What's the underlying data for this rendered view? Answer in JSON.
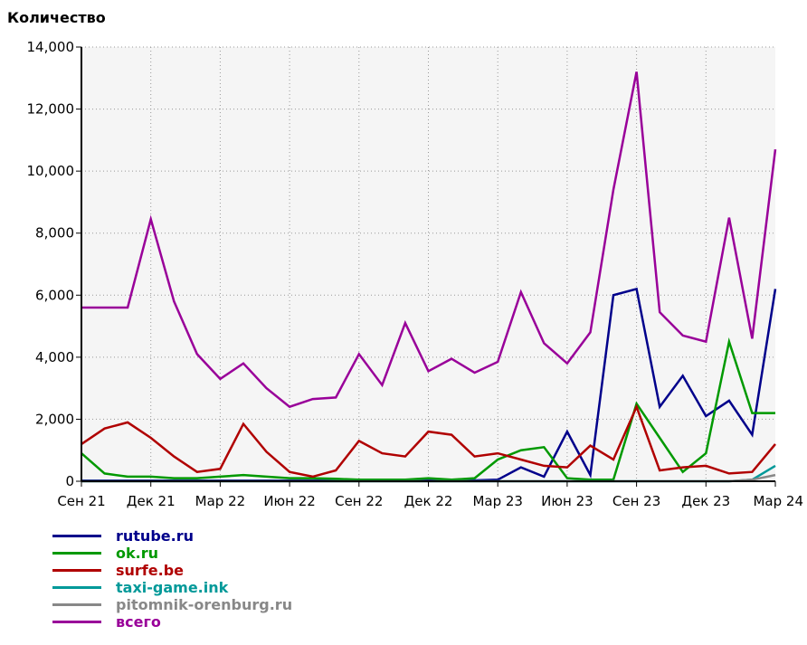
{
  "chart_data": {
    "type": "line",
    "ylabel": "Количество",
    "ylim": [
      0,
      14000
    ],
    "yticks": [
      "0",
      "2,000",
      "4,000",
      "6,000",
      "8,000",
      "10,000",
      "12,000",
      "14,000"
    ],
    "xticks": [
      "Сен 21",
      "Дек 21",
      "Мар 22",
      "Июн 22",
      "Сен 22",
      "Дек 22",
      "Мар 23",
      "Июн 23",
      "Сен 23",
      "Дек 23",
      "Мар 24"
    ],
    "x": [
      "2021-09",
      "2021-10",
      "2021-11",
      "2021-12",
      "2022-01",
      "2022-02",
      "2022-03",
      "2022-04",
      "2022-05",
      "2022-06",
      "2022-07",
      "2022-08",
      "2022-09",
      "2022-10",
      "2022-11",
      "2022-12",
      "2023-01",
      "2023-02",
      "2023-03",
      "2023-04",
      "2023-05",
      "2023-06",
      "2023-07",
      "2023-08",
      "2023-09",
      "2023-10",
      "2023-11",
      "2023-12",
      "2024-01",
      "2024-02",
      "2024-03"
    ],
    "grid": true,
    "legend_position": "bottom-left",
    "series": [
      {
        "name": "rutube.ru",
        "color": "#00008b",
        "values": [
          20,
          20,
          20,
          20,
          20,
          20,
          20,
          20,
          20,
          20,
          20,
          20,
          20,
          20,
          20,
          20,
          20,
          30,
          50,
          450,
          150,
          1600,
          200,
          6000,
          6200,
          2400,
          3400,
          2100,
          2600,
          1500,
          6200
        ]
      },
      {
        "name": "ok.ru",
        "color": "#009900",
        "values": [
          900,
          250,
          150,
          150,
          100,
          100,
          150,
          200,
          150,
          100,
          100,
          80,
          50,
          50,
          50,
          100,
          50,
          100,
          700,
          1000,
          1100,
          100,
          50,
          50,
          2500,
          1400,
          300,
          900,
          4500,
          2200,
          2200
        ]
      },
      {
        "name": "surfe.be",
        "color": "#b00000",
        "values": [
          1200,
          1700,
          1900,
          1400,
          800,
          300,
          400,
          1850,
          950,
          300,
          150,
          350,
          1300,
          900,
          800,
          1600,
          1500,
          800,
          900,
          700,
          500,
          450,
          1150,
          700,
          2400,
          350,
          450,
          500,
          250,
          300,
          1200
        ]
      },
      {
        "name": "taxi-game.ink",
        "color": "#009999",
        "values": [
          0,
          0,
          0,
          0,
          0,
          0,
          0,
          0,
          0,
          0,
          0,
          0,
          0,
          0,
          0,
          0,
          0,
          0,
          0,
          0,
          0,
          0,
          0,
          0,
          0,
          0,
          0,
          0,
          0,
          50,
          500
        ]
      },
      {
        "name": "pitomnik-orenburg.ru",
        "color": "#888888",
        "values": [
          0,
          0,
          0,
          0,
          0,
          0,
          0,
          0,
          0,
          0,
          0,
          0,
          0,
          0,
          0,
          0,
          0,
          0,
          0,
          0,
          0,
          0,
          0,
          0,
          0,
          0,
          0,
          0,
          0,
          50,
          200
        ]
      },
      {
        "name": "всего",
        "color": "#990099",
        "values": [
          5600,
          5600,
          5600,
          8450,
          5800,
          4100,
          3300,
          3800,
          3000,
          2400,
          2650,
          2700,
          4100,
          3100,
          5100,
          3550,
          3950,
          3500,
          3850,
          6100,
          4450,
          3800,
          4800,
          9400,
          13200,
          5450,
          4700,
          4500,
          8500,
          4600,
          10700
        ]
      }
    ]
  }
}
